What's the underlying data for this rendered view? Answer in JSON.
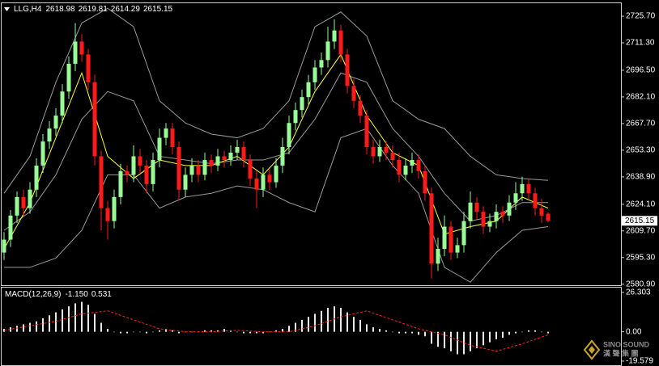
{
  "chart_data": {
    "type": "candlestick",
    "symbol": "LLG,H4",
    "open": 2618.98,
    "high": 2619.81,
    "low": 2614.29,
    "close": 2615.15,
    "up_color": "#98fb98",
    "down_color": "#ff1a1a",
    "candles": {
      "open": [
        2598,
        2605,
        2618,
        2628,
        2622,
        2632,
        2645,
        2658,
        2665,
        2672,
        2685,
        2700,
        2712,
        2705,
        2690,
        2650,
        2622,
        2615,
        2628,
        2642,
        2640,
        2650,
        2645,
        2635,
        2648,
        2660,
        2665,
        2655,
        2632,
        2640,
        2645,
        2640,
        2648,
        2645,
        2650,
        2648,
        2652,
        2655,
        2648,
        2638,
        2632,
        2640,
        2636,
        2645,
        2655,
        2668,
        2675,
        2682,
        2690,
        2698,
        2702,
        2712,
        2718,
        2705,
        2688,
        2680,
        2672,
        2655,
        2650,
        2655,
        2652,
        2648,
        2640,
        2645,
        2648,
        2642,
        2630,
        2592,
        2600,
        2612,
        2598,
        2602,
        2615,
        2625,
        2620,
        2612,
        2615,
        2620,
        2618,
        2625,
        2630,
        2635,
        2630,
        2622,
        2618.98
      ],
      "high": [
        2609,
        2621,
        2631,
        2632,
        2636,
        2649,
        2662,
        2669,
        2676,
        2689,
        2704,
        2722,
        2716,
        2708,
        2694,
        2653,
        2626,
        2632,
        2646,
        2645,
        2656,
        2654,
        2648,
        2652,
        2665,
        2668,
        2668,
        2658,
        2644,
        2649,
        2648,
        2652,
        2651,
        2654,
        2653,
        2656,
        2659,
        2658,
        2651,
        2642,
        2644,
        2643,
        2649,
        2660,
        2672,
        2679,
        2686,
        2694,
        2702,
        2706,
        2720,
        2724,
        2721,
        2708,
        2692,
        2683,
        2675,
        2659,
        2659,
        2658,
        2656,
        2652,
        2649,
        2652,
        2651,
        2645,
        2633,
        2606,
        2618,
        2615,
        2606,
        2620,
        2631,
        2628,
        2623,
        2619,
        2624,
        2623,
        2629,
        2636,
        2639,
        2638,
        2633,
        2627,
        2619.81
      ],
      "low": [
        2594,
        2601,
        2614,
        2618,
        2619,
        2628,
        2641,
        2654,
        2661,
        2668,
        2681,
        2696,
        2701,
        2686,
        2645,
        2610,
        2605,
        2611,
        2624,
        2636,
        2636,
        2641,
        2630,
        2631,
        2644,
        2656,
        2651,
        2626,
        2628,
        2636,
        2636,
        2637,
        2641,
        2642,
        2644,
        2645,
        2648,
        2644,
        2634,
        2622,
        2628,
        2632,
        2633,
        2641,
        2651,
        2664,
        2671,
        2678,
        2686,
        2694,
        2698,
        2708,
        2701,
        2684,
        2676,
        2668,
        2651,
        2646,
        2647,
        2648,
        2644,
        2636,
        2637,
        2641,
        2638,
        2626,
        2584,
        2588,
        2596,
        2594,
        2595,
        2598,
        2611,
        2616,
        2608,
        2609,
        2611,
        2614,
        2615,
        2621,
        2626,
        2627,
        2618,
        2614,
        2614.29
      ],
      "close": [
        2605,
        2618,
        2628,
        2622,
        2632,
        2645,
        2658,
        2665,
        2672,
        2685,
        2700,
        2712,
        2705,
        2690,
        2650,
        2622,
        2615,
        2628,
        2642,
        2640,
        2650,
        2645,
        2635,
        2648,
        2660,
        2665,
        2655,
        2632,
        2640,
        2645,
        2640,
        2648,
        2645,
        2650,
        2648,
        2652,
        2655,
        2648,
        2638,
        2632,
        2640,
        2636,
        2645,
        2655,
        2668,
        2675,
        2682,
        2690,
        2698,
        2702,
        2712,
        2718,
        2705,
        2688,
        2680,
        2672,
        2655,
        2650,
        2655,
        2652,
        2648,
        2640,
        2645,
        2648,
        2642,
        2630,
        2592,
        2600,
        2612,
        2598,
        2602,
        2615,
        2625,
        2620,
        2612,
        2615,
        2620,
        2618,
        2625,
        2630,
        2635,
        2630,
        2622,
        2618,
        2615.15
      ]
    },
    "ylim": [
      2580.8,
      2732.7
    ],
    "yticks": [
      {
        "value": 2725.7,
        "label": "2725.70"
      },
      {
        "value": 2711.3,
        "label": "2711.30"
      },
      {
        "value": 2696.5,
        "label": "2696.50"
      },
      {
        "value": 2682.1,
        "label": "2682.10"
      },
      {
        "value": 2667.7,
        "label": "2667.70"
      },
      {
        "value": 2653.3,
        "label": "2653.30"
      },
      {
        "value": 2638.9,
        "label": "2638.90"
      },
      {
        "value": 2624.1,
        "label": "2624.10"
      },
      {
        "value": 2609.7,
        "label": "2609.70"
      },
      {
        "value": 2595.3,
        "label": "2595.30"
      },
      {
        "value": 2580.9,
        "label": "2580.90"
      }
    ],
    "overlays": [
      {
        "color": "#9a9a9a",
        "x": [
          0,
          4,
          8,
          12,
          16,
          20,
          24,
          28,
          32,
          36,
          40,
          44,
          48,
          52,
          56,
          60,
          64,
          68,
          72,
          76,
          80,
          84
        ],
        "values": [
          2630,
          2650,
          2690,
          2722,
          2730,
          2720,
          2680,
          2668,
          2662,
          2660,
          2665,
          2680,
          2720,
          2728,
          2715,
          2680,
          2670,
          2665,
          2650,
          2640,
          2638,
          2637
        ]
      },
      {
        "color": "#9a9a9a",
        "x": [
          0,
          4,
          8,
          12,
          16,
          20,
          24,
          28,
          32,
          36,
          40,
          44,
          48,
          52,
          56,
          60,
          64,
          68,
          72,
          76,
          80,
          84
        ],
        "values": [
          2610,
          2620,
          2640,
          2670,
          2685,
          2680,
          2650,
          2648,
          2646,
          2648,
          2648,
          2652,
          2670,
          2695,
          2690,
          2665,
          2650,
          2630,
          2615,
          2618,
          2625,
          2625
        ]
      },
      {
        "color": "#9a9a9a",
        "x": [
          0,
          4,
          8,
          12,
          16,
          20,
          24,
          28,
          32,
          36,
          40,
          44,
          48,
          52,
          56,
          60,
          64,
          68,
          72,
          76,
          80,
          84
        ],
        "values": [
          2590,
          2590,
          2595,
          2610,
          2640,
          2640,
          2622,
          2628,
          2630,
          2634,
          2632,
          2625,
          2620,
          2660,
          2665,
          2645,
          2630,
          2590,
          2582,
          2598,
          2610,
          2612
        ]
      },
      {
        "color": "#ffff33",
        "x": [
          0,
          4,
          8,
          12,
          16,
          20,
          24,
          28,
          32,
          36,
          40,
          44,
          48,
          52,
          56,
          60,
          64,
          68,
          72,
          76,
          80,
          84
        ],
        "values": [
          2600,
          2625,
          2660,
          2695,
          2650,
          2638,
          2648,
          2645,
          2645,
          2650,
          2640,
          2655,
          2685,
          2705,
          2672,
          2652,
          2645,
          2608,
          2612,
          2615,
          2628,
          2622
        ]
      }
    ],
    "macd": {
      "label": "MACD(12,26,9)",
      "values": [
        -1.15,
        0.531
      ],
      "value_labels": [
        "-1.150",
        "0.531"
      ],
      "color": "#e8e8e8",
      "signal_color": "#ff2020",
      "histogram": [
        2,
        3,
        4,
        5,
        6,
        7,
        9,
        11,
        13,
        15,
        17,
        19,
        20,
        18,
        12,
        6,
        2,
        0,
        -1,
        -1,
        0,
        0,
        -1,
        0,
        1,
        2,
        1,
        -1,
        0,
        0,
        0,
        1,
        1,
        1,
        2,
        1,
        0,
        -1,
        -1,
        -1,
        -1,
        0,
        1,
        2,
        4,
        6,
        8,
        10,
        12,
        14,
        16,
        17,
        16,
        13,
        10,
        8,
        5,
        3,
        2,
        1,
        0,
        -1,
        -1,
        -1,
        -2,
        -3,
        -8,
        -10,
        -11,
        -13,
        -15,
        -15,
        -13,
        -11,
        -9,
        -7,
        -5,
        -4,
        -2,
        -1,
        0,
        1,
        1,
        0,
        -1
      ],
      "signal": {
        "x": [
          0,
          4,
          8,
          12,
          16,
          20,
          24,
          28,
          32,
          36,
          40,
          44,
          48,
          52,
          56,
          60,
          64,
          68,
          72,
          76,
          80,
          84
        ],
        "values": [
          1,
          4,
          7,
          12,
          14,
          8,
          2,
          0,
          0,
          1,
          0,
          0,
          4,
          10,
          14,
          8,
          2,
          -2,
          -9,
          -13,
          -8,
          -2
        ]
      },
      "ylim": [
        -22.3,
        29.5
      ],
      "yticks": [
        26.303,
        {
          "value": 0,
          "label": "0.00"
        },
        -19.579
      ]
    },
    "watermark": [
      "SINO SOUND",
      "漢 聲 集 團"
    ]
  }
}
